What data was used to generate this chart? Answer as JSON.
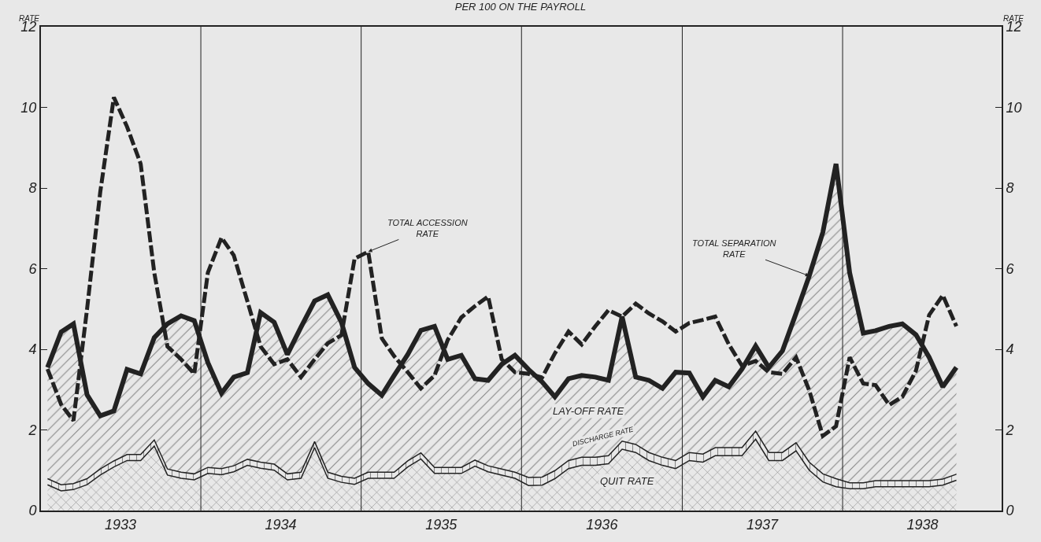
{
  "chart_data": {
    "type": "area",
    "title": "PER 100 ON THE PAYROLL",
    "ylabel": "RATE",
    "y2label": "RATE",
    "stacked": true,
    "x": [
      "1933-01",
      "1933-02",
      "1933-03",
      "1933-04",
      "1933-05",
      "1933-06",
      "1933-07",
      "1933-08",
      "1933-09",
      "1933-10",
      "1933-11",
      "1933-12",
      "1934-01",
      "1934-02",
      "1934-03",
      "1934-04",
      "1934-05",
      "1934-06",
      "1934-07",
      "1934-08",
      "1934-09",
      "1934-10",
      "1934-11",
      "1934-12",
      "1935-01",
      "1935-02",
      "1935-03",
      "1935-04",
      "1935-05",
      "1935-06",
      "1935-07",
      "1935-08",
      "1935-09",
      "1935-10",
      "1935-11",
      "1935-12",
      "1936-01",
      "1936-02",
      "1936-03",
      "1936-04",
      "1936-05",
      "1936-06",
      "1936-07",
      "1936-08",
      "1936-09",
      "1936-10",
      "1936-11",
      "1936-12",
      "1937-01",
      "1937-02",
      "1937-03",
      "1937-04",
      "1937-05",
      "1937-06",
      "1937-07",
      "1937-08",
      "1937-09",
      "1937-10",
      "1937-11",
      "1937-12",
      "1938-01",
      "1938-02",
      "1938-03",
      "1938-04",
      "1938-05",
      "1938-06",
      "1938-07",
      "1938-08",
      "1938-09"
    ],
    "series": [
      {
        "name": "QUIT RATE",
        "color": "#222222",
        "values": [
          0.64,
          0.49,
          0.52,
          0.64,
          0.88,
          1.08,
          1.24,
          1.24,
          1.6,
          0.88,
          0.8,
          0.76,
          0.92,
          0.89,
          0.96,
          1.12,
          1.05,
          1.0,
          0.76,
          0.8,
          1.56,
          0.8,
          0.7,
          0.65,
          0.8,
          0.8,
          0.8,
          1.08,
          1.28,
          0.92,
          0.92,
          0.92,
          1.1,
          0.96,
          0.88,
          0.8,
          0.62,
          0.63,
          0.79,
          1.04,
          1.12,
          1.12,
          1.16,
          1.52,
          1.44,
          1.24,
          1.12,
          1.04,
          1.24,
          1.2,
          1.36,
          1.36,
          1.36,
          1.77,
          1.24,
          1.24,
          1.48,
          1.0,
          0.71,
          0.59,
          0.54,
          0.54,
          0.59,
          0.59,
          0.59,
          0.59,
          0.59,
          0.63,
          0.75
        ]
      },
      {
        "name": "DISCHARGE RATE",
        "color": "#222222",
        "values": [
          0.15,
          0.15,
          0.15,
          0.15,
          0.15,
          0.15,
          0.15,
          0.15,
          0.15,
          0.15,
          0.15,
          0.15,
          0.15,
          0.15,
          0.15,
          0.15,
          0.15,
          0.15,
          0.15,
          0.15,
          0.15,
          0.15,
          0.15,
          0.15,
          0.15,
          0.15,
          0.15,
          0.15,
          0.15,
          0.15,
          0.15,
          0.15,
          0.15,
          0.15,
          0.15,
          0.15,
          0.2,
          0.2,
          0.2,
          0.2,
          0.2,
          0.2,
          0.2,
          0.2,
          0.2,
          0.2,
          0.2,
          0.2,
          0.2,
          0.2,
          0.2,
          0.2,
          0.2,
          0.2,
          0.2,
          0.2,
          0.2,
          0.2,
          0.2,
          0.2,
          0.15,
          0.15,
          0.15,
          0.15,
          0.15,
          0.15,
          0.15,
          0.15,
          0.15
        ]
      },
      {
        "name": "LAY-OFF RATE",
        "color": "#222222",
        "values": [
          2.76,
          3.79,
          3.96,
          2.08,
          1.32,
          1.24,
          2.11,
          2.0,
          2.54,
          3.6,
          3.88,
          3.8,
          2.6,
          1.87,
          2.2,
          2.15,
          3.71,
          3.52,
          2.96,
          3.6,
          3.49,
          4.4,
          3.82,
          2.75,
          2.2,
          1.91,
          2.4,
          2.64,
          3.04,
          3.5,
          2.68,
          2.78,
          2.02,
          2.12,
          2.6,
          2.9,
          2.68,
          2.36,
          1.83,
          2.03,
          2.03,
          1.99,
          1.87,
          3.09,
          1.67,
          1.79,
          1.71,
          2.19,
          1.97,
          1.42,
          1.67,
          1.51,
          1.95,
          2.11,
          2.11,
          2.52,
          3.21,
          4.62,
          5.99,
          7.81,
          5.21,
          3.71,
          3.72,
          3.83,
          3.89,
          3.62,
          3.06,
          2.29,
          2.65
        ]
      },
      {
        "type": "line",
        "color": "#222222",
        "line_style": "dashed",
        "values": [
          3.51,
          2.63,
          2.23,
          5.0,
          7.9,
          10.25,
          9.52,
          8.6,
          5.9,
          4.07,
          3.75,
          3.39,
          5.9,
          6.77,
          6.33,
          5.19,
          4.07,
          3.63,
          3.75,
          3.31,
          3.75,
          4.15,
          4.35,
          6.25,
          6.42,
          4.27,
          3.83,
          3.43,
          3.03,
          3.35,
          4.23,
          4.79,
          5.07,
          5.31,
          3.75,
          3.43,
          3.39,
          3.3,
          3.9,
          4.44,
          4.12,
          4.57,
          4.97,
          4.81,
          5.13,
          4.89,
          4.69,
          4.44,
          4.65,
          4.73,
          4.81,
          4.12,
          3.59,
          3.71,
          3.43,
          3.39,
          3.8,
          2.98,
          1.85,
          2.09,
          3.8,
          3.15,
          3.11,
          2.62,
          2.82,
          3.47,
          4.85,
          5.34,
          4.57
        ]
      }
    ],
    "xlim": [
      "1932-12-17",
      "1938-12-13"
    ],
    "xticks": [
      {
        "value": "1933-06-16",
        "label": "1933"
      },
      {
        "value": "1934-06-16",
        "label": "1934"
      },
      {
        "value": "1935-06-16",
        "label": "1935"
      },
      {
        "value": "1936-06-16",
        "label": "1936"
      },
      {
        "value": "1937-06-16",
        "label": "1937"
      },
      {
        "value": "1938-06-16",
        "label": "1938"
      }
    ],
    "ylim": [
      0,
      12
    ],
    "yticks": [
      0,
      2,
      4,
      6,
      8,
      10,
      12
    ],
    "y2lim": [
      0,
      12
    ],
    "y2ticks": [
      0,
      2,
      4,
      6,
      8,
      10,
      12
    ],
    "ref_lines": [
      {
        "axis": "x",
        "value": "1933-12-16",
        "color": "#222222"
      },
      {
        "axis": "x",
        "value": "1934-12-16",
        "color": "#222222"
      },
      {
        "axis": "x",
        "value": "1935-12-16",
        "color": "#222222"
      },
      {
        "axis": "x",
        "value": "1936-12-16",
        "color": "#222222"
      },
      {
        "axis": "x",
        "value": "1937-12-16",
        "color": "#222222"
      }
    ],
    "annotations": [
      {
        "text": "TOTAL ACCESSION\nRATE",
        "x": "1935-01",
        "y": 6.42
      },
      {
        "text": "TOTAL SEPARATION\nRATE",
        "x": "1937-10",
        "y": 5.82
      }
    ],
    "grid": false
  }
}
